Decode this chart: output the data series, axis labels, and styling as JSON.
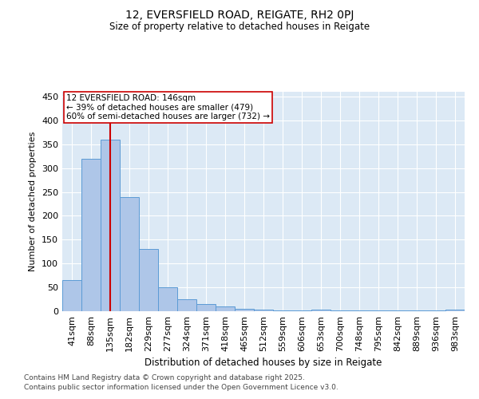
{
  "title1": "12, EVERSFIELD ROAD, REIGATE, RH2 0PJ",
  "title2": "Size of property relative to detached houses in Reigate",
  "xlabel": "Distribution of detached houses by size in Reigate",
  "ylabel": "Number of detached properties",
  "bar_labels": [
    "41sqm",
    "88sqm",
    "135sqm",
    "182sqm",
    "229sqm",
    "277sqm",
    "324sqm",
    "371sqm",
    "418sqm",
    "465sqm",
    "512sqm",
    "559sqm",
    "606sqm",
    "653sqm",
    "700sqm",
    "748sqm",
    "795sqm",
    "842sqm",
    "889sqm",
    "936sqm",
    "983sqm"
  ],
  "bar_values": [
    65,
    320,
    360,
    240,
    130,
    50,
    25,
    15,
    10,
    5,
    3,
    1,
    1,
    3,
    1,
    1,
    1,
    1,
    1,
    1,
    3
  ],
  "bar_color": "#aec6e8",
  "bar_edge_color": "#5b9bd5",
  "property_line_x": 2,
  "property_line_color": "#cc0000",
  "annotation_text": "12 EVERSFIELD ROAD: 146sqm\n← 39% of detached houses are smaller (479)\n60% of semi-detached houses are larger (732) →",
  "annotation_box_color": "#ffffff",
  "annotation_box_edge_color": "#cc0000",
  "ylim": [
    0,
    460
  ],
  "footnote1": "Contains HM Land Registry data © Crown copyright and database right 2025.",
  "footnote2": "Contains public sector information licensed under the Open Government Licence v3.0.",
  "plot_background": "#dce9f5"
}
